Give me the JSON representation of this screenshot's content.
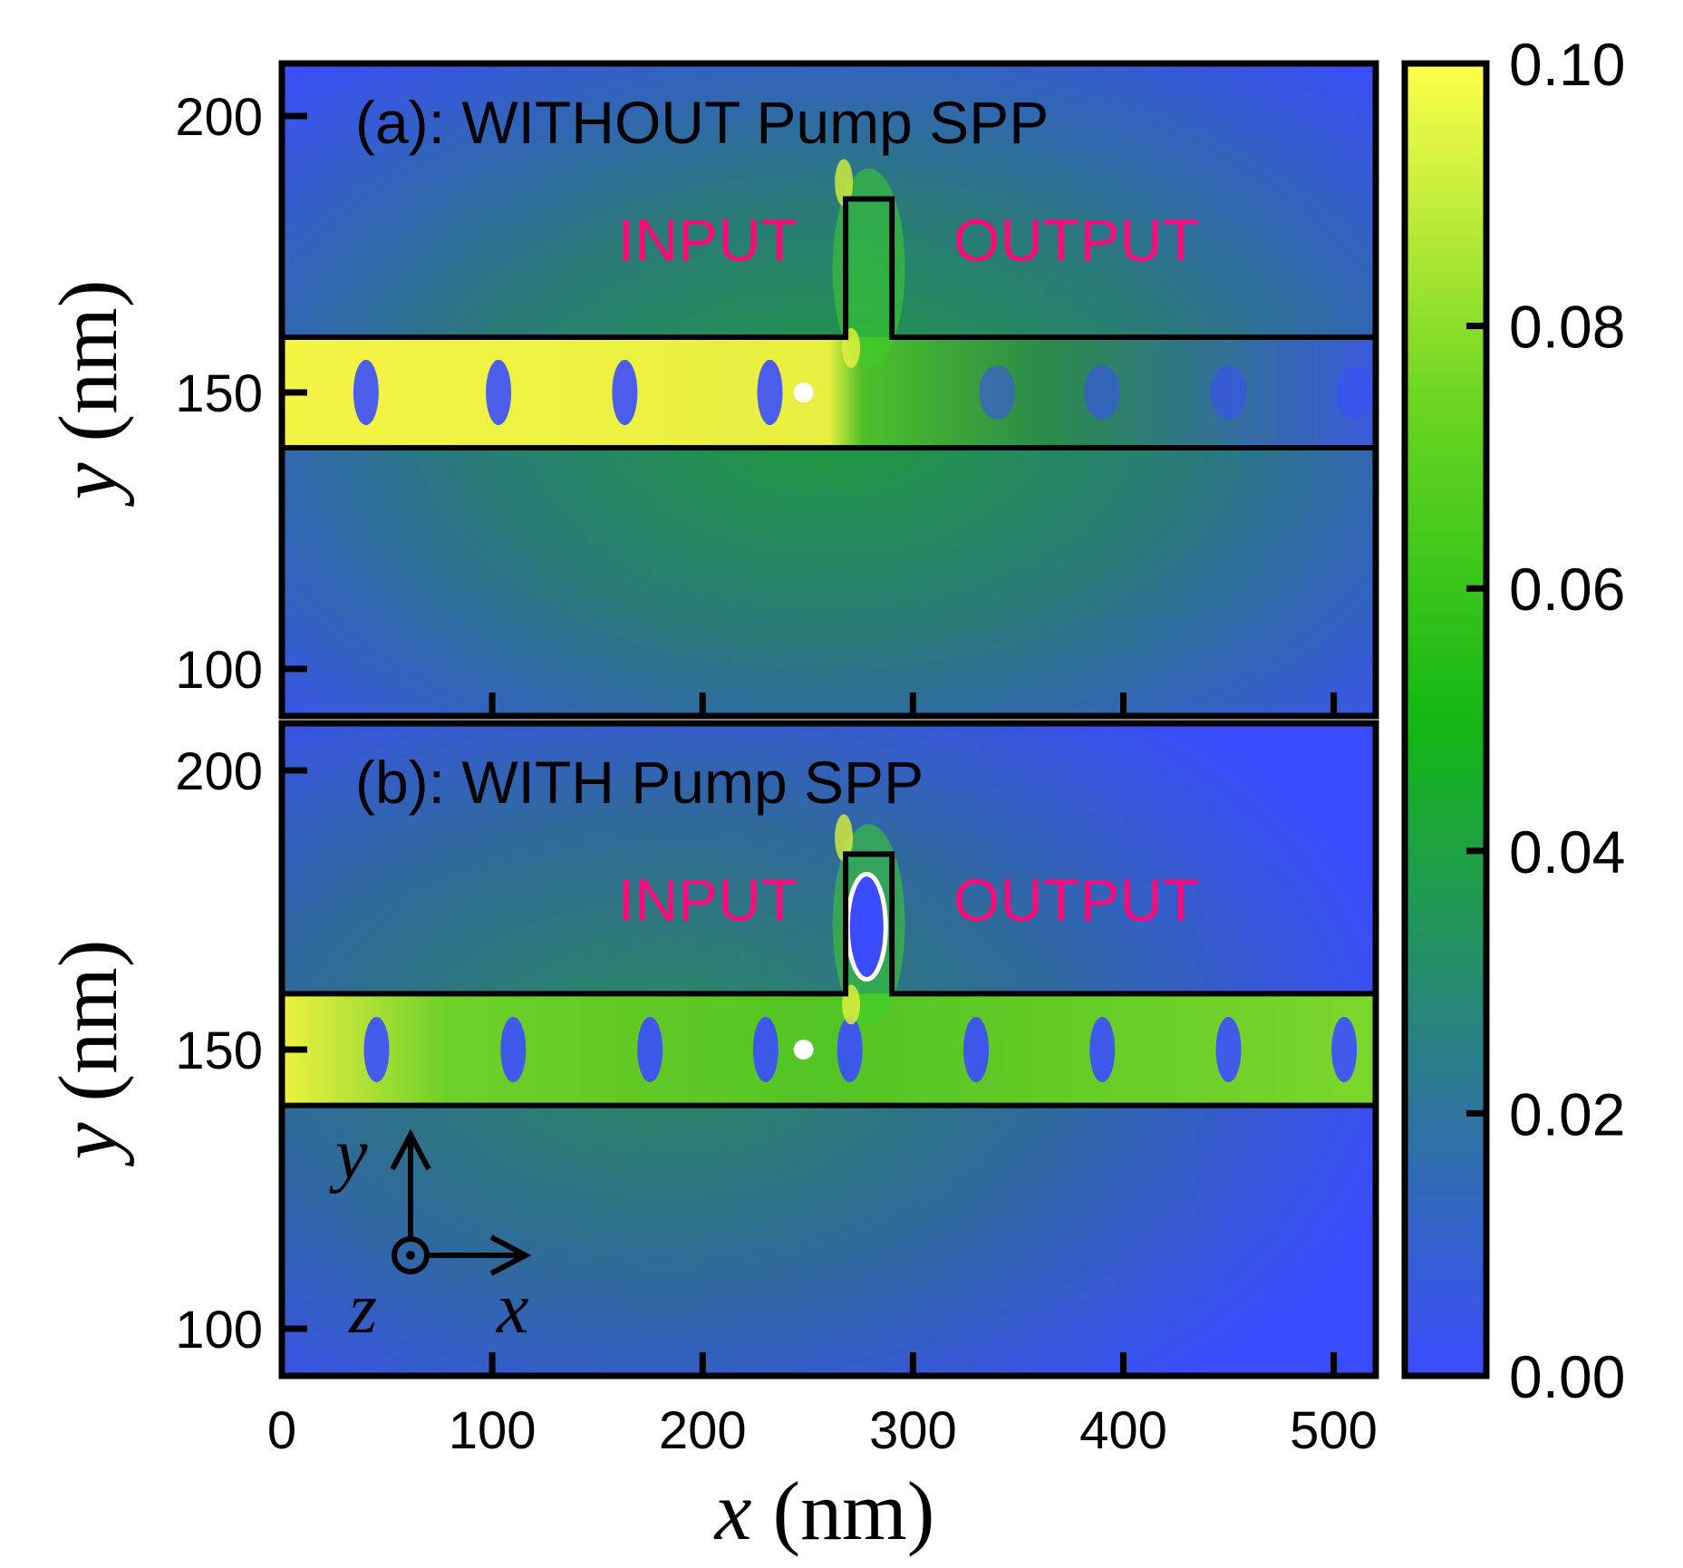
{
  "chart_data": {
    "type": "heatmap",
    "xlabel_var": "x",
    "xlabel_unit": "(nm)",
    "xlim": [
      0,
      520
    ],
    "x_ticks": [
      0,
      100,
      200,
      300,
      400,
      500
    ],
    "x_tick_labels": [
      "0",
      "100",
      "200",
      "300",
      "400",
      "500"
    ],
    "colorbar": {
      "range": [
        0.0,
        0.1
      ],
      "ticks": [
        0.0,
        0.02,
        0.04,
        0.06,
        0.08,
        0.1
      ],
      "tick_labels": [
        "0.00",
        "0.02",
        "0.04",
        "0.06",
        "0.08",
        "0.10"
      ],
      "colors": [
        "#3b4cff",
        "#2a7f86",
        "#14b814",
        "#6fd623",
        "#ffff4a"
      ]
    },
    "panels": [
      {
        "id": "a",
        "title": "(a): WITHOUT Pump SPP",
        "ylabel_var": "y",
        "ylabel_unit": "(nm)",
        "ylim": [
          90,
          210
        ],
        "y_ticks": [
          100,
          150,
          200
        ],
        "y_tick_labels": [
          "100",
          "150",
          "200"
        ],
        "input_label": "INPUT",
        "output_label": "OUTPUT",
        "waveguide_y": [
          140,
          160
        ],
        "stub_x": [
          268,
          290
        ],
        "stub_y_top": 185,
        "source_point": [
          248,
          150
        ],
        "transmission": "low"
      },
      {
        "id": "b",
        "title": "(b): WITH Pump SPP",
        "ylabel_var": "y",
        "ylabel_unit": "(nm)",
        "ylim": [
          90,
          210
        ],
        "y_ticks": [
          100,
          150,
          200
        ],
        "y_tick_labels": [
          "100",
          "150",
          "200"
        ],
        "input_label": "INPUT",
        "output_label": "OUTPUT",
        "waveguide_y": [
          140,
          160
        ],
        "stub_x": [
          268,
          290
        ],
        "stub_y_top": 185,
        "source_point": [
          248,
          150
        ],
        "resonator_center": [
          278,
          172
        ],
        "transmission": "high"
      }
    ],
    "coordinate_axes": {
      "y": "y",
      "x": "x",
      "z": "z"
    }
  }
}
